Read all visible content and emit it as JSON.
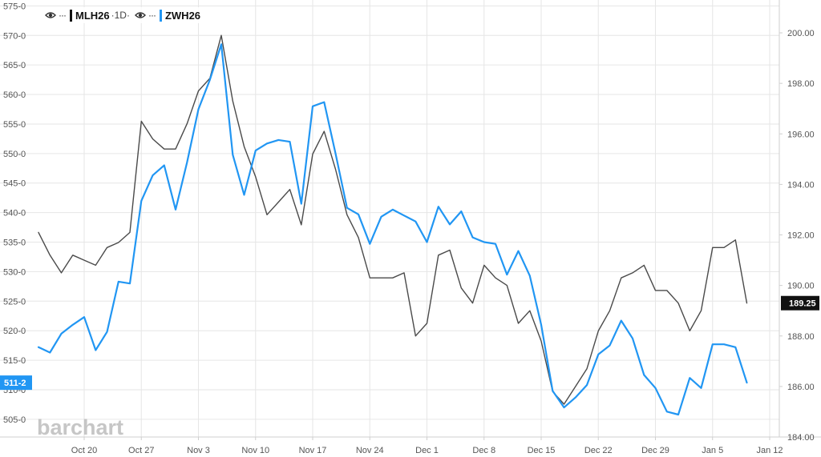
{
  "legend": {
    "series_a_symbol": "MLH26",
    "series_a_interval": "·1D·",
    "series_b_symbol": "ZWH26",
    "dots": "···",
    "eye_icon": "eye-icon"
  },
  "watermark": "barchart",
  "colors": {
    "series_a": "#4a4a4a",
    "series_b": "#2196f3",
    "grid": "#e6e6e6",
    "left_badge_bg": "#2196f3",
    "right_badge_bg": "#111111"
  },
  "chart_data": {
    "type": "line",
    "x_tick_labels": [
      "Oct 20",
      "Oct 27",
      "Nov 3",
      "Nov 10",
      "Nov 17",
      "Nov 24",
      "Dec 1",
      "Dec 8",
      "Dec 15",
      "Dec 22",
      "Dec 29",
      "Jan 5",
      "Jan 12"
    ],
    "left_axis": {
      "ticks": [
        "505-0",
        "510-0",
        "515-0",
        "520-0",
        "525-0",
        "530-0",
        "535-0",
        "540-0",
        "545-0",
        "550-0",
        "555-0",
        "560-0",
        "565-0",
        "570-0",
        "575-0"
      ],
      "range": [
        502,
        576
      ],
      "last_value_label": "511-2"
    },
    "right_axis": {
      "ticks": [
        "184.00",
        "186.00",
        "188.00",
        "190.00",
        "192.00",
        "194.00",
        "196.00",
        "198.00",
        "200.00"
      ],
      "range": [
        184,
        201.3
      ],
      "last_value_label": "189.25"
    },
    "series": [
      {
        "name": "MLH26",
        "axis": "right",
        "values": [
          192.1,
          191.2,
          190.5,
          191.2,
          191.0,
          190.8,
          191.5,
          191.7,
          192.1,
          196.5,
          195.8,
          195.4,
          195.4,
          196.4,
          197.7,
          198.2,
          199.9,
          197.3,
          195.5,
          194.3,
          192.8,
          193.3,
          193.8,
          192.4,
          195.2,
          196.1,
          194.6,
          192.8,
          191.9,
          190.3,
          190.3,
          190.3,
          190.5,
          188.0,
          188.5,
          191.2,
          191.4,
          189.9,
          189.3,
          190.8,
          190.3,
          190.0,
          188.5,
          189.0,
          187.8,
          185.8,
          185.3,
          186.0,
          186.7,
          188.2,
          189.0,
          190.3,
          190.5,
          190.8,
          189.8,
          189.8,
          189.3,
          188.2,
          189.0,
          191.5,
          191.5,
          191.8,
          189.3
        ]
      },
      {
        "name": "ZWH26",
        "axis": "left",
        "values": [
          517.2,
          516.3,
          519.5,
          521.0,
          522.3,
          516.7,
          519.8,
          528.3,
          528.0,
          542.0,
          546.3,
          548.0,
          540.5,
          548.5,
          557.5,
          562.5,
          568.5,
          549.8,
          543.0,
          550.5,
          551.7,
          552.3,
          552.0,
          541.5,
          558.0,
          558.7,
          550.0,
          540.8,
          539.7,
          534.7,
          539.3,
          540.5,
          539.5,
          538.5,
          535.0,
          541.0,
          538.0,
          540.2,
          535.8,
          535.0,
          534.7,
          529.5,
          533.5,
          529.3,
          521.0,
          509.8,
          507.0,
          508.7,
          510.8,
          516.0,
          517.5,
          521.7,
          518.7,
          512.5,
          510.3,
          506.3,
          505.8,
          512.0,
          510.3,
          517.7,
          517.7,
          517.2,
          511.2
        ]
      }
    ],
    "grid": true,
    "legend_position": "top-left"
  }
}
